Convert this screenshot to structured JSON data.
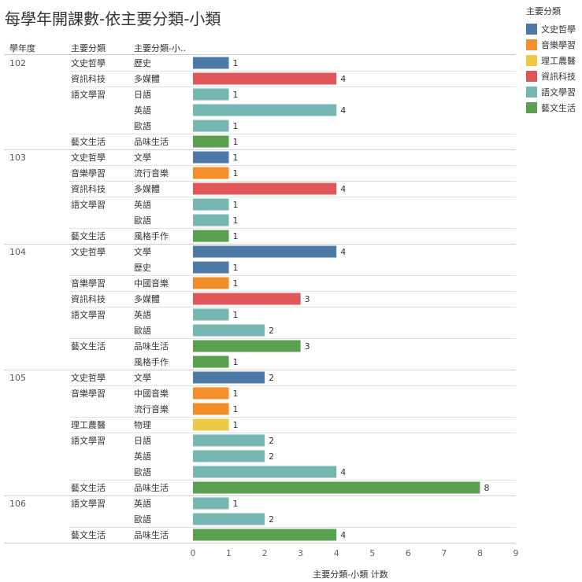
{
  "page": {
    "title": "每學年開課數-依主要分類-小類"
  },
  "legend": {
    "title": "主要分類",
    "items": [
      {
        "label": "文史哲學",
        "color": "#4e79a7"
      },
      {
        "label": "音樂學習",
        "color": "#f28e2b"
      },
      {
        "label": "理工農醫",
        "color": "#edc948"
      },
      {
        "label": "資訊科技",
        "color": "#e15759"
      },
      {
        "label": "語文學習",
        "color": "#76b7b2"
      },
      {
        "label": "藝文生活",
        "color": "#59a14f"
      }
    ]
  },
  "chart_data": {
    "type": "bar",
    "orientation": "horizontal",
    "title": "每學年開課數-依主要分類-小類",
    "column_headers": [
      "學年度",
      "主要分類",
      "主要分類-小.."
    ],
    "xlabel": "主要分類-小類 计数",
    "xlim": [
      0,
      9
    ],
    "xticks": [
      0,
      1,
      2,
      3,
      4,
      5,
      6,
      7,
      8,
      9
    ],
    "grid": false,
    "legend_position": "top-right",
    "colors": {
      "文史哲學": "#4e79a7",
      "音樂學習": "#f28e2b",
      "理工農醫": "#edc948",
      "資訊科技": "#e15759",
      "語文學習": "#76b7b2",
      "藝文生活": "#59a14f"
    },
    "rows": [
      {
        "year": "102",
        "category": "文史哲學",
        "subcategory": "歷史",
        "value": 1
      },
      {
        "year": "102",
        "category": "資訊科技",
        "subcategory": "多媒體",
        "value": 4
      },
      {
        "year": "102",
        "category": "語文學習",
        "subcategory": "日語",
        "value": 1
      },
      {
        "year": "102",
        "category": "語文學習",
        "subcategory": "英語",
        "value": 4
      },
      {
        "year": "102",
        "category": "語文學習",
        "subcategory": "歐語",
        "value": 1
      },
      {
        "year": "102",
        "category": "藝文生活",
        "subcategory": "品味生活",
        "value": 1
      },
      {
        "year": "103",
        "category": "文史哲學",
        "subcategory": "文學",
        "value": 1
      },
      {
        "year": "103",
        "category": "音樂學習",
        "subcategory": "流行音樂",
        "value": 1
      },
      {
        "year": "103",
        "category": "資訊科技",
        "subcategory": "多媒體",
        "value": 4
      },
      {
        "year": "103",
        "category": "語文學習",
        "subcategory": "英語",
        "value": 1
      },
      {
        "year": "103",
        "category": "語文學習",
        "subcategory": "歐語",
        "value": 1
      },
      {
        "year": "103",
        "category": "藝文生活",
        "subcategory": "風格手作",
        "value": 1
      },
      {
        "year": "104",
        "category": "文史哲學",
        "subcategory": "文學",
        "value": 4
      },
      {
        "year": "104",
        "category": "文史哲學",
        "subcategory": "歷史",
        "value": 1
      },
      {
        "year": "104",
        "category": "音樂學習",
        "subcategory": "中國音樂",
        "value": 1
      },
      {
        "year": "104",
        "category": "資訊科技",
        "subcategory": "多媒體",
        "value": 3
      },
      {
        "year": "104",
        "category": "語文學習",
        "subcategory": "英語",
        "value": 1
      },
      {
        "year": "104",
        "category": "語文學習",
        "subcategory": "歐語",
        "value": 2
      },
      {
        "year": "104",
        "category": "藝文生活",
        "subcategory": "品味生活",
        "value": 3
      },
      {
        "year": "104",
        "category": "藝文生活",
        "subcategory": "風格手作",
        "value": 1
      },
      {
        "year": "105",
        "category": "文史哲學",
        "subcategory": "文學",
        "value": 2
      },
      {
        "year": "105",
        "category": "音樂學習",
        "subcategory": "中國音樂",
        "value": 1
      },
      {
        "year": "105",
        "category": "音樂學習",
        "subcategory": "流行音樂",
        "value": 1
      },
      {
        "year": "105",
        "category": "理工農醫",
        "subcategory": "物理",
        "value": 1
      },
      {
        "year": "105",
        "category": "語文學習",
        "subcategory": "日語",
        "value": 2
      },
      {
        "year": "105",
        "category": "語文學習",
        "subcategory": "英語",
        "value": 2
      },
      {
        "year": "105",
        "category": "語文學習",
        "subcategory": "歐語",
        "value": 4
      },
      {
        "year": "105",
        "category": "藝文生活",
        "subcategory": "品味生活",
        "value": 8
      },
      {
        "year": "106",
        "category": "語文學習",
        "subcategory": "英語",
        "value": 1
      },
      {
        "year": "106",
        "category": "語文學習",
        "subcategory": "歐語",
        "value": 2
      },
      {
        "year": "106",
        "category": "藝文生活",
        "subcategory": "品味生活",
        "value": 4
      }
    ]
  }
}
